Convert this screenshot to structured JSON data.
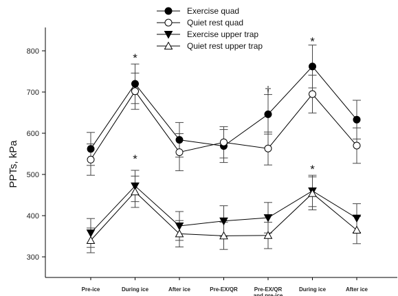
{
  "chart_data": {
    "type": "line",
    "title": "",
    "xlabel": "",
    "ylabel": "PPTs, kPa",
    "ylim": [
      250,
      850
    ],
    "yticks": [
      300,
      400,
      500,
      600,
      700,
      800
    ],
    "categories": [
      "Pre-ice",
      "During ice",
      "After ice",
      "Pre-EX/QR",
      "Pre-EX/QR and pre-ice",
      "During ice",
      "After ice"
    ],
    "legend_position": "top-center",
    "grid": false,
    "series": [
      {
        "name": "Exercise quad",
        "marker": "filled-circle",
        "color": "#000000",
        "values": [
          562,
          720,
          584,
          569,
          646,
          762,
          633
        ],
        "error": [
          40,
          48,
          42,
          40,
          48,
          52,
          47
        ]
      },
      {
        "name": "Quiet rest quad",
        "marker": "open-circle",
        "color": "#000000",
        "values": [
          536,
          702,
          554,
          578,
          563,
          695,
          570
        ],
        "error": [
          38,
          44,
          45,
          38,
          40,
          46,
          43
        ]
      },
      {
        "name": "Exercise upper trap",
        "marker": "filled-triangle-down",
        "color": "#000000",
        "values": [
          358,
          472,
          375,
          387,
          395,
          460,
          394
        ],
        "error": [
          35,
          38,
          35,
          37,
          37,
          38,
          35
        ]
      },
      {
        "name": "Quiet rest upper trap",
        "marker": "open-triangle-up",
        "color": "#000000",
        "values": [
          340,
          458,
          356,
          351,
          352,
          454,
          365
        ],
        "error": [
          30,
          38,
          32,
          33,
          32,
          40,
          33
        ]
      }
    ],
    "annotations": [
      {
        "text": "*",
        "category_index": 1,
        "y": 790
      },
      {
        "text": "*",
        "category_index": 1,
        "y": 545
      },
      {
        "text": "†",
        "category_index": 4,
        "y": 712
      },
      {
        "text": "*",
        "category_index": 5,
        "y": 830
      },
      {
        "text": "*",
        "category_index": 5,
        "y": 520
      }
    ]
  }
}
